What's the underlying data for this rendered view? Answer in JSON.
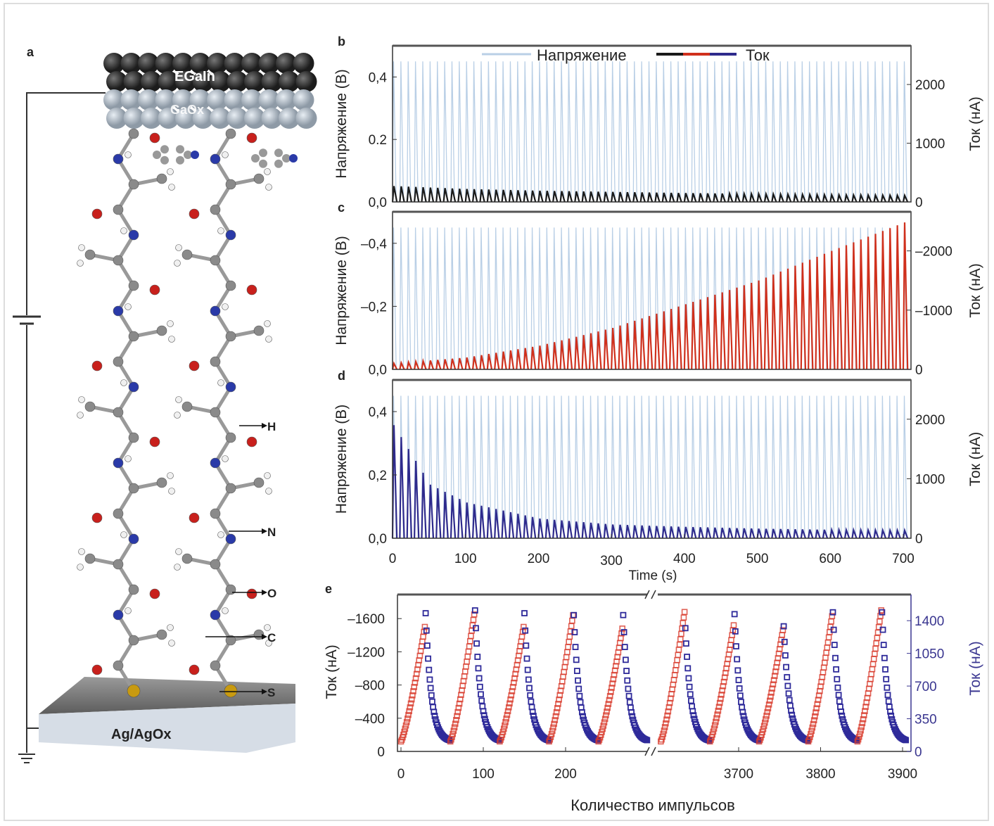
{
  "panel_a": {
    "label": "a",
    "top_electrode": "EGaIn",
    "oxide": "GaOx",
    "substrate": "Ag/AgOx",
    "atom_labels": [
      "H",
      "N",
      "O",
      "C",
      "S"
    ],
    "atom_colors": {
      "H": "#f0f0f0",
      "N": "#2a3aa8",
      "O": "#c8201c",
      "C": "#8a8a8a",
      "S": "#c89a10"
    }
  },
  "legend": {
    "voltage": "Напряжение",
    "current": "Ток"
  },
  "colors": {
    "voltage": "#b9cfe6",
    "current_b": "#1a1a1a",
    "current_c": "#d0301c",
    "current_d": "#2e2a8c",
    "e_red": "#d83a2a",
    "e_blue": "#2e2a9a"
  },
  "chart_data": [
    {
      "panel": "b",
      "type": "line",
      "ylabel": "Напряжение (В)",
      "y2label": "Ток (нА)",
      "xlim": [
        0,
        710
      ],
      "ylim": [
        0,
        0.5
      ],
      "y2lim": [
        0,
        2660
      ],
      "yticks": [
        "0,0",
        "0.2",
        "0,4"
      ],
      "y2ticks": [
        "0",
        "1000",
        "2000"
      ],
      "pulse_period_s": 10,
      "voltage_peak": 0.45,
      "current_peak_envelope": {
        "t": [
          0,
          100,
          200,
          300,
          400,
          500,
          600,
          700
        ],
        "nA": [
          270,
          220,
          190,
          170,
          150,
          135,
          120,
          110
        ]
      }
    },
    {
      "panel": "c",
      "type": "line",
      "ylabel": "Напряжение (В)",
      "y2label": "Ток (нА)",
      "xlim": [
        0,
        710
      ],
      "ylim": [
        0,
        -0.5
      ],
      "y2lim": [
        0,
        -2660
      ],
      "yticks": [
        "0,0",
        "–0,2",
        "–0,4"
      ],
      "y2ticks": [
        "0",
        "–1000",
        "–2000"
      ],
      "pulse_period_s": 10,
      "voltage_peak": -0.45,
      "current_peak_envelope": {
        "t": [
          0,
          100,
          200,
          300,
          400,
          500,
          600,
          700
        ],
        "nA": [
          -100,
          -200,
          -400,
          -700,
          -1100,
          -1500,
          -2000,
          -2480
        ]
      }
    },
    {
      "panel": "d",
      "type": "line",
      "ylabel": "Напряжение (В)",
      "y2label": "Ток (нА)",
      "xlabel": "Time (s)",
      "xlim": [
        0,
        710
      ],
      "ylim": [
        0,
        0.5
      ],
      "y2lim": [
        0,
        2660
      ],
      "xticks": [
        "0",
        "100",
        "200",
        "300",
        "400",
        "500",
        "600",
        "700"
      ],
      "yticks": [
        "0,0",
        "0,2",
        "0,4"
      ],
      "y2ticks": [
        "0",
        "1000",
        "2000"
      ],
      "pulse_period_s": 10,
      "voltage_peak": 0.45,
      "current_peak_envelope": {
        "t": [
          0,
          50,
          100,
          200,
          300,
          400,
          500,
          600,
          700
        ],
        "nA": [
          1900,
          900,
          600,
          330,
          230,
          190,
          160,
          140,
          130
        ]
      }
    },
    {
      "panel": "e",
      "type": "scatter",
      "xlabel": "Количество импульсов",
      "ylabel": "Ток (нА)",
      "y2label": "Ток (нА)",
      "xticks": [
        "0",
        "100",
        "200",
        "3700",
        "3800",
        "3900"
      ],
      "yticks": [
        "0",
        "–400",
        "–800",
        "–1200",
        "–1600"
      ],
      "y2ticks": [
        "0",
        "350",
        "700",
        "1050",
        "1400"
      ],
      "ylim": [
        0,
        -1890
      ],
      "y2lim": [
        0,
        1680
      ],
      "axis_break": [
        300,
        3605
      ],
      "series": [
        {
          "color": "red",
          "axis": "left",
          "points_per_cycle": 30
        },
        {
          "color": "blue",
          "axis": "right",
          "points_per_cycle": 30
        }
      ],
      "cycles": [
        {
          "start": 0,
          "red_peak": -1500,
          "blue_peak": 1480
        },
        {
          "start": 60,
          "red_peak": -1650,
          "blue_peak": 1510
        },
        {
          "start": 120,
          "red_peak": -1500,
          "blue_peak": 1480
        },
        {
          "start": 180,
          "red_peak": -1640,
          "blue_peak": 1460
        },
        {
          "start": 240,
          "red_peak": -1480,
          "blue_peak": 1460
        },
        {
          "start": 3605,
          "red_peak": -1680,
          "blue_peak": 1320
        },
        {
          "start": 3665,
          "red_peak": -1520,
          "blue_peak": 1470
        },
        {
          "start": 3725,
          "red_peak": -1460,
          "blue_peak": 1340
        },
        {
          "start": 3785,
          "red_peak": -1630,
          "blue_peak": 1490
        },
        {
          "start": 3845,
          "red_peak": -1700,
          "blue_peak": 1490
        }
      ]
    }
  ]
}
